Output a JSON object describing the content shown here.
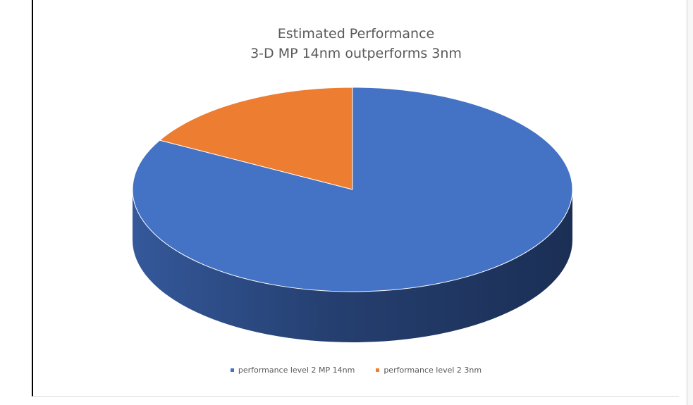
{
  "chart_data": {
    "type": "pie",
    "title": "Estimated Performance",
    "subtitle": "3-D MP 14nm outperforms  3nm",
    "categories": [
      "performance level 2 MP 14nm",
      "performance level 2 3nm"
    ],
    "values": [
      83,
      17
    ],
    "colors": [
      "#4472C4",
      "#ED7D31"
    ],
    "style": "3d",
    "legend_position": "bottom"
  }
}
